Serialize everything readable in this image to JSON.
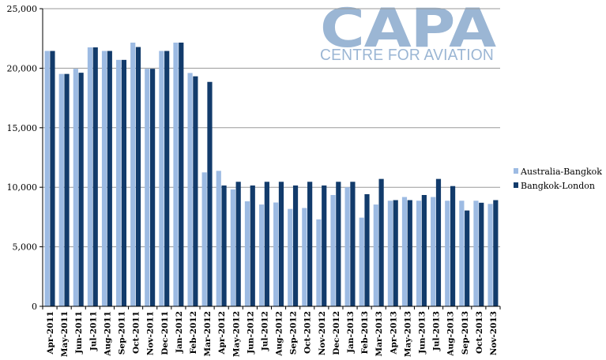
{
  "logo": {
    "main_text": "CAPA",
    "sub_text": "CENTRE FOR AVIATION",
    "color": "#9bb6d4"
  },
  "chart_data": {
    "type": "bar",
    "title": "",
    "xlabel": "",
    "ylabel": "",
    "ylim": [
      0,
      25000
    ],
    "yticks": [
      "0",
      "5,000",
      "10,000",
      "15,000",
      "20,000",
      "25,000"
    ],
    "ytick_values": [
      0,
      5000,
      10000,
      15000,
      20000,
      25000
    ],
    "grid": true,
    "legend_position": "right",
    "categories": [
      "Apr-2011",
      "May-2011",
      "Jun-2011",
      "Jul-2011",
      "Aug-2011",
      "Sep-2011",
      "Oct-2011",
      "Nov-2011",
      "Dec-2011",
      "Jan-2012",
      "Feb-2012",
      "Mar-2012",
      "Apr-2012",
      "May-2012",
      "Jun-2012",
      "Jul-2012",
      "Aug-2012",
      "Sep-2012",
      "Oct-2012",
      "Nov-2012",
      "Dec-2012",
      "Jan-2013",
      "Feb-2013",
      "Mar-2013",
      "Apr-2013",
      "May-2013",
      "Jun-2013",
      "Jul-2013",
      "Aug-2013",
      "Sep-2013",
      "Oct-2013",
      "Nov-2013"
    ],
    "series": [
      {
        "name": "Australia-Bangkok",
        "color": "#9dbbe3",
        "values": [
          21450,
          19520,
          19950,
          21750,
          21450,
          20700,
          22150,
          19950,
          21450,
          22150,
          19600,
          11250,
          11380,
          9820,
          8820,
          8550,
          8720,
          8180,
          8260,
          7300,
          9350,
          10000,
          7450,
          8550,
          8870,
          9180,
          8870,
          9180,
          8870,
          8870,
          8870,
          8600
        ]
      },
      {
        "name": "Bangkok-London",
        "color": "#123b6b",
        "values": [
          21450,
          19520,
          19620,
          21750,
          21450,
          20700,
          21780,
          19950,
          21450,
          22150,
          19320,
          18850,
          10150,
          10460,
          10150,
          10460,
          10460,
          10150,
          10460,
          10150,
          10460,
          10460,
          9420,
          10700,
          8920,
          8920,
          9350,
          10700,
          10100,
          8050,
          8700,
          8920
        ]
      }
    ]
  }
}
